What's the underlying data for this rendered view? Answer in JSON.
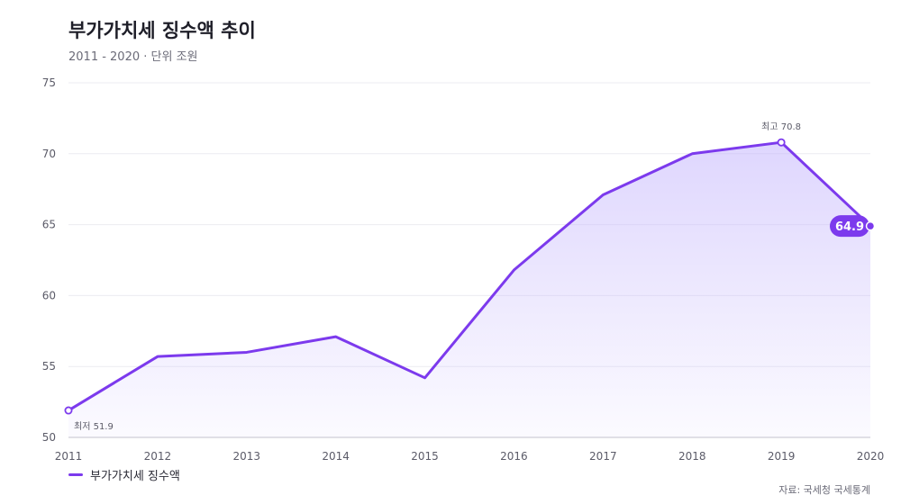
{
  "header": {
    "title": "부가가치세 징수액 추이",
    "subtitle": "2011 - 2020 · 단위 조원"
  },
  "chart_data": {
    "type": "area",
    "title": "부가가치세 징수액 추이",
    "subtitle": "2011 - 2020 · 단위 조원",
    "x": [
      "2011",
      "2012",
      "2013",
      "2014",
      "2015",
      "2016",
      "2017",
      "2018",
      "2019",
      "2020"
    ],
    "series": [
      {
        "name": "부가가치세 징수액",
        "values": [
          51.9,
          55.7,
          56.0,
          57.1,
          54.2,
          61.8,
          67.1,
          70.0,
          70.8,
          64.9
        ]
      }
    ],
    "ylim": [
      50,
      75
    ],
    "yticks": [
      50,
      55,
      60,
      65,
      70,
      75
    ],
    "grid": true,
    "legend": "bottom-left",
    "annotations": {
      "min_label": "최저 51.9",
      "max_label": "최고 70.8",
      "last_value_label": "64.9"
    },
    "colors": {
      "line": "#7c3aed",
      "fill": "#c4b5fd"
    }
  },
  "legend": {
    "label": "부가가치세 징수액"
  },
  "source": "자료: 국세청 국세통계"
}
